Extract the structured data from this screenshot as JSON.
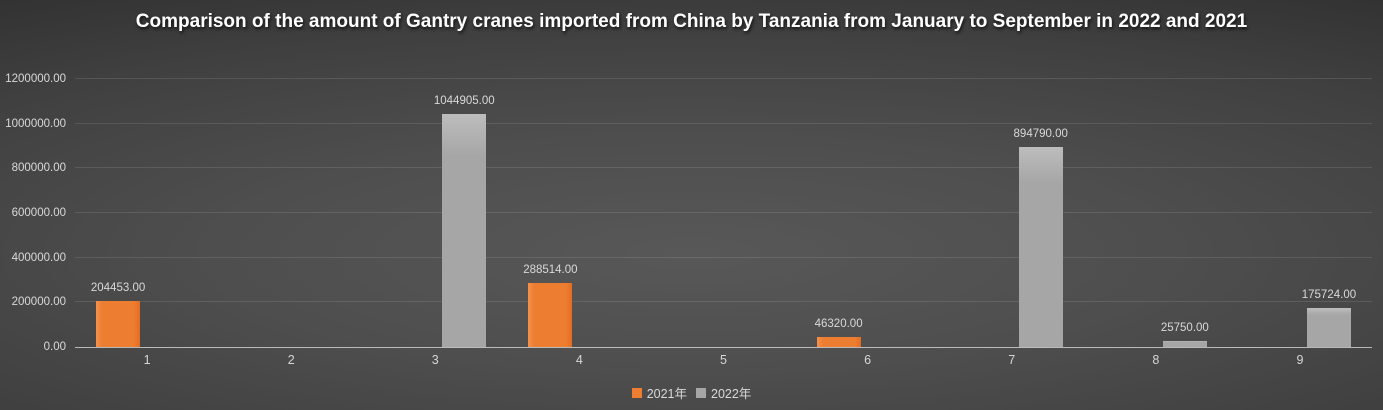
{
  "title": "Comparison of the amount of Gantry cranes imported from China by Tanzania from January to September in 2022 and 2021",
  "legend": [
    {
      "label": "2021年",
      "color": "#ED7D31"
    },
    {
      "label": "2022年",
      "color": "#A6A6A6"
    }
  ],
  "colors": {
    "series_2021": "#ED7D31",
    "series_2022": "#A6A6A6",
    "title_text": "#FFFFFF",
    "axis_text": "#D9D9D9",
    "background_center": "#565656",
    "background_edge": "#242424"
  },
  "chart_data": {
    "type": "bar",
    "title": "Comparison of the amount of Gantry cranes imported from China by Tanzania from January to September in 2022 and 2021",
    "categories": [
      "1",
      "2",
      "3",
      "4",
      "5",
      "6",
      "7",
      "8",
      "9"
    ],
    "series": [
      {
        "name": "2021年",
        "color": "#ED7D31",
        "values": [
          204453,
          null,
          null,
          288514,
          null,
          46320,
          null,
          null,
          null
        ]
      },
      {
        "name": "2022年",
        "color": "#A6A6A6",
        "values": [
          null,
          null,
          1044905,
          null,
          null,
          null,
          894790,
          25750,
          175724
        ]
      }
    ],
    "data_labels": [
      "204453.00",
      "1044905.00",
      "288514.00",
      "46320.00",
      "894790.00",
      "25750.00",
      "175724.00"
    ],
    "label_decimals": 2,
    "xlabel": "",
    "ylabel": "",
    "ylim": [
      0,
      1200000
    ],
    "ytick_step": 200000,
    "ytick_labels": [
      "0.00",
      "200000.00",
      "400000.00",
      "600000.00",
      "800000.00",
      "1000000.00",
      "1200000.00"
    ],
    "grid": "horizontal",
    "legend_position": "bottom"
  }
}
